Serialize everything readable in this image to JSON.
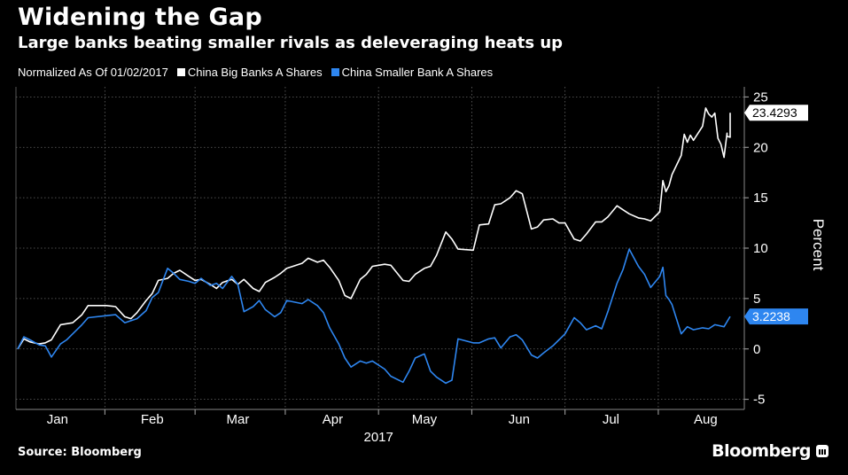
{
  "title": "Widening the Gap",
  "subtitle": "Large banks beating smaller rivals as deleveraging heats up",
  "legend": {
    "note": "Normalized As Of 01/02/2017",
    "items": [
      {
        "label": "China Big Banks A Shares",
        "color": "#ffffff"
      },
      {
        "label": "China Smaller Bank A Shares",
        "color": "#2e86f0"
      }
    ]
  },
  "source": "Source: Bloomberg",
  "brand": "Bloomberg",
  "chart_data": {
    "type": "line",
    "ylabel": "Percent",
    "xlabel": "2017",
    "ylim": [
      -6,
      26
    ],
    "yticks": [
      -5,
      0,
      5,
      10,
      15,
      20,
      25
    ],
    "xlim": [
      "2017-01-02",
      "2017-08-23"
    ],
    "month_labels": [
      "Jan",
      "Feb",
      "Mar",
      "Apr",
      "May",
      "Jun",
      "Jul",
      "Aug"
    ],
    "month_starts": [
      "2017-01-15",
      "2017-02-15",
      "2017-03-15",
      "2017-04-15",
      "2017-05-15",
      "2017-06-15",
      "2017-07-15",
      "2017-08-15"
    ],
    "grid": true,
    "series": [
      {
        "name": "China Big Banks A Shares",
        "color": "#ffffff",
        "last_value_label": "23.4293",
        "points": [
          [
            "2017-01-02",
            0.0
          ],
          [
            "2017-01-04",
            1.0
          ],
          [
            "2017-01-06",
            0.7
          ],
          [
            "2017-01-09",
            0.5
          ],
          [
            "2017-01-11",
            0.6
          ],
          [
            "2017-01-13",
            0.9
          ],
          [
            "2017-01-16",
            2.4
          ],
          [
            "2017-01-18",
            2.5
          ],
          [
            "2017-01-20",
            2.6
          ],
          [
            "2017-01-23",
            3.4
          ],
          [
            "2017-01-25",
            4.3
          ],
          [
            "2017-01-31",
            4.3
          ],
          [
            "2017-02-03",
            4.2
          ],
          [
            "2017-02-06",
            3.2
          ],
          [
            "2017-02-08",
            3.0
          ],
          [
            "2017-02-10",
            3.6
          ],
          [
            "2017-02-13",
            4.8
          ],
          [
            "2017-02-15",
            5.5
          ],
          [
            "2017-02-17",
            6.8
          ],
          [
            "2017-02-20",
            7.0
          ],
          [
            "2017-02-22",
            7.5
          ],
          [
            "2017-02-24",
            7.8
          ],
          [
            "2017-02-27",
            7.2
          ],
          [
            "2017-03-01",
            6.8
          ],
          [
            "2017-03-03",
            6.9
          ],
          [
            "2017-03-06",
            6.4
          ],
          [
            "2017-03-08",
            6.0
          ],
          [
            "2017-03-10",
            6.6
          ],
          [
            "2017-03-13",
            6.9
          ],
          [
            "2017-03-15",
            6.4
          ],
          [
            "2017-03-17",
            6.9
          ],
          [
            "2017-03-20",
            6.0
          ],
          [
            "2017-03-22",
            5.7
          ],
          [
            "2017-03-24",
            6.6
          ],
          [
            "2017-03-27",
            7.1
          ],
          [
            "2017-03-29",
            7.5
          ],
          [
            "2017-03-31",
            8.0
          ],
          [
            "2017-04-05",
            8.5
          ],
          [
            "2017-04-07",
            9.0
          ],
          [
            "2017-04-10",
            8.6
          ],
          [
            "2017-04-12",
            8.8
          ],
          [
            "2017-04-14",
            8.1
          ],
          [
            "2017-04-17",
            6.8
          ],
          [
            "2017-04-19",
            5.3
          ],
          [
            "2017-04-21",
            5.0
          ],
          [
            "2017-04-24",
            6.9
          ],
          [
            "2017-04-26",
            7.4
          ],
          [
            "2017-04-28",
            8.2
          ],
          [
            "2017-05-02",
            8.4
          ],
          [
            "2017-05-04",
            8.3
          ],
          [
            "2017-05-08",
            6.8
          ],
          [
            "2017-05-10",
            6.7
          ],
          [
            "2017-05-12",
            7.4
          ],
          [
            "2017-05-15",
            8.0
          ],
          [
            "2017-05-17",
            8.2
          ],
          [
            "2017-05-19",
            9.3
          ],
          [
            "2017-05-22",
            11.6
          ],
          [
            "2017-05-24",
            10.9
          ],
          [
            "2017-05-26",
            9.9
          ],
          [
            "2017-05-31",
            9.8
          ],
          [
            "2017-06-02",
            12.3
          ],
          [
            "2017-06-05",
            12.4
          ],
          [
            "2017-06-07",
            14.3
          ],
          [
            "2017-06-09",
            14.4
          ],
          [
            "2017-06-12",
            15.0
          ],
          [
            "2017-06-14",
            15.7
          ],
          [
            "2017-06-16",
            15.4
          ],
          [
            "2017-06-19",
            11.9
          ],
          [
            "2017-06-21",
            12.1
          ],
          [
            "2017-06-23",
            12.8
          ],
          [
            "2017-06-26",
            12.9
          ],
          [
            "2017-06-28",
            12.5
          ],
          [
            "2017-06-30",
            12.5
          ],
          [
            "2017-07-03",
            10.9
          ],
          [
            "2017-07-05",
            10.7
          ],
          [
            "2017-07-07",
            11.4
          ],
          [
            "2017-07-10",
            12.6
          ],
          [
            "2017-07-12",
            12.6
          ],
          [
            "2017-07-14",
            13.1
          ],
          [
            "2017-07-17",
            14.2
          ],
          [
            "2017-07-19",
            13.8
          ],
          [
            "2017-07-21",
            13.4
          ],
          [
            "2017-07-24",
            13.0
          ],
          [
            "2017-07-26",
            12.9
          ],
          [
            "2017-07-28",
            12.7
          ],
          [
            "2017-07-31",
            13.6
          ],
          [
            "2017-08-01",
            16.7
          ],
          [
            "2017-08-02",
            15.6
          ],
          [
            "2017-08-03",
            16.2
          ],
          [
            "2017-08-04",
            17.3
          ],
          [
            "2017-08-07",
            19.2
          ],
          [
            "2017-08-08",
            21.3
          ],
          [
            "2017-08-09",
            20.5
          ],
          [
            "2017-08-10",
            21.2
          ],
          [
            "2017-08-11",
            20.7
          ],
          [
            "2017-08-14",
            22.1
          ],
          [
            "2017-08-15",
            23.9
          ],
          [
            "2017-08-16",
            23.3
          ],
          [
            "2017-08-17",
            23.0
          ],
          [
            "2017-08-18",
            23.4
          ],
          [
            "2017-08-19",
            20.9
          ],
          [
            "2017-08-20",
            20.3
          ],
          [
            "2017-08-21",
            19.0
          ],
          [
            "2017-08-22",
            21.4
          ],
          [
            "2017-08-22",
            21.1
          ],
          [
            "2017-08-23",
            21.0
          ],
          [
            "2017-08-23",
            22.0
          ],
          [
            "2017-08-23",
            23.4293
          ]
        ]
      },
      {
        "name": "China Smaller Bank A Shares",
        "color": "#2e86f0",
        "last_value_label": "3.2238",
        "points": [
          [
            "2017-01-02",
            0.0
          ],
          [
            "2017-01-04",
            1.2
          ],
          [
            "2017-01-06",
            0.9
          ],
          [
            "2017-01-09",
            0.4
          ],
          [
            "2017-01-11",
            0.3
          ],
          [
            "2017-01-13",
            -0.8
          ],
          [
            "2017-01-16",
            0.5
          ],
          [
            "2017-01-18",
            0.9
          ],
          [
            "2017-01-20",
            1.5
          ],
          [
            "2017-01-23",
            2.4
          ],
          [
            "2017-01-25",
            3.1
          ],
          [
            "2017-01-31",
            3.3
          ],
          [
            "2017-02-03",
            3.4
          ],
          [
            "2017-02-06",
            2.6
          ],
          [
            "2017-02-08",
            2.8
          ],
          [
            "2017-02-10",
            3.0
          ],
          [
            "2017-02-13",
            3.8
          ],
          [
            "2017-02-15",
            5.1
          ],
          [
            "2017-02-17",
            5.6
          ],
          [
            "2017-02-20",
            8.0
          ],
          [
            "2017-02-22",
            7.5
          ],
          [
            "2017-02-24",
            6.9
          ],
          [
            "2017-02-27",
            6.7
          ],
          [
            "2017-03-01",
            6.5
          ],
          [
            "2017-03-03",
            7.0
          ],
          [
            "2017-03-06",
            6.3
          ],
          [
            "2017-03-08",
            6.5
          ],
          [
            "2017-03-10",
            6.0
          ],
          [
            "2017-03-13",
            7.2
          ],
          [
            "2017-03-15",
            6.4
          ],
          [
            "2017-03-17",
            3.7
          ],
          [
            "2017-03-20",
            4.2
          ],
          [
            "2017-03-22",
            4.8
          ],
          [
            "2017-03-24",
            3.9
          ],
          [
            "2017-03-27",
            3.2
          ],
          [
            "2017-03-29",
            3.6
          ],
          [
            "2017-03-31",
            4.8
          ],
          [
            "2017-04-05",
            4.5
          ],
          [
            "2017-04-07",
            4.9
          ],
          [
            "2017-04-10",
            4.3
          ],
          [
            "2017-04-12",
            3.6
          ],
          [
            "2017-04-14",
            2.1
          ],
          [
            "2017-04-17",
            0.5
          ],
          [
            "2017-04-19",
            -0.9
          ],
          [
            "2017-04-21",
            -1.8
          ],
          [
            "2017-04-24",
            -1.2
          ],
          [
            "2017-04-26",
            -1.4
          ],
          [
            "2017-04-28",
            -1.2
          ],
          [
            "2017-05-02",
            -2.0
          ],
          [
            "2017-05-04",
            -2.7
          ],
          [
            "2017-05-08",
            -3.3
          ],
          [
            "2017-05-10",
            -2.2
          ],
          [
            "2017-05-12",
            -0.9
          ],
          [
            "2017-05-15",
            -0.5
          ],
          [
            "2017-05-17",
            -2.2
          ],
          [
            "2017-05-19",
            -2.8
          ],
          [
            "2017-05-22",
            -3.4
          ],
          [
            "2017-05-24",
            -3.1
          ],
          [
            "2017-05-26",
            1.0
          ],
          [
            "2017-05-31",
            0.6
          ],
          [
            "2017-06-02",
            0.6
          ],
          [
            "2017-06-05",
            1.0
          ],
          [
            "2017-06-07",
            1.1
          ],
          [
            "2017-06-09",
            0.1
          ],
          [
            "2017-06-12",
            1.2
          ],
          [
            "2017-06-14",
            1.4
          ],
          [
            "2017-06-16",
            0.9
          ],
          [
            "2017-06-19",
            -0.6
          ],
          [
            "2017-06-21",
            -0.9
          ],
          [
            "2017-06-23",
            -0.4
          ],
          [
            "2017-06-26",
            0.3
          ],
          [
            "2017-06-28",
            0.9
          ],
          [
            "2017-06-30",
            1.5
          ],
          [
            "2017-07-03",
            3.1
          ],
          [
            "2017-07-05",
            2.6
          ],
          [
            "2017-07-07",
            1.9
          ],
          [
            "2017-07-10",
            2.3
          ],
          [
            "2017-07-12",
            2.0
          ],
          [
            "2017-07-14",
            3.7
          ],
          [
            "2017-07-17",
            6.5
          ],
          [
            "2017-07-19",
            7.9
          ],
          [
            "2017-07-21",
            9.9
          ],
          [
            "2017-07-24",
            8.2
          ],
          [
            "2017-07-26",
            7.4
          ],
          [
            "2017-07-28",
            6.1
          ],
          [
            "2017-07-31",
            7.2
          ],
          [
            "2017-08-01",
            8.1
          ],
          [
            "2017-08-02",
            5.3
          ],
          [
            "2017-08-03",
            4.9
          ],
          [
            "2017-08-04",
            4.4
          ],
          [
            "2017-08-07",
            1.5
          ],
          [
            "2017-08-09",
            2.2
          ],
          [
            "2017-08-11",
            1.9
          ],
          [
            "2017-08-14",
            2.1
          ],
          [
            "2017-08-16",
            2.0
          ],
          [
            "2017-08-18",
            2.4
          ],
          [
            "2017-08-21",
            2.2
          ],
          [
            "2017-08-23",
            3.2238
          ]
        ]
      }
    ]
  }
}
